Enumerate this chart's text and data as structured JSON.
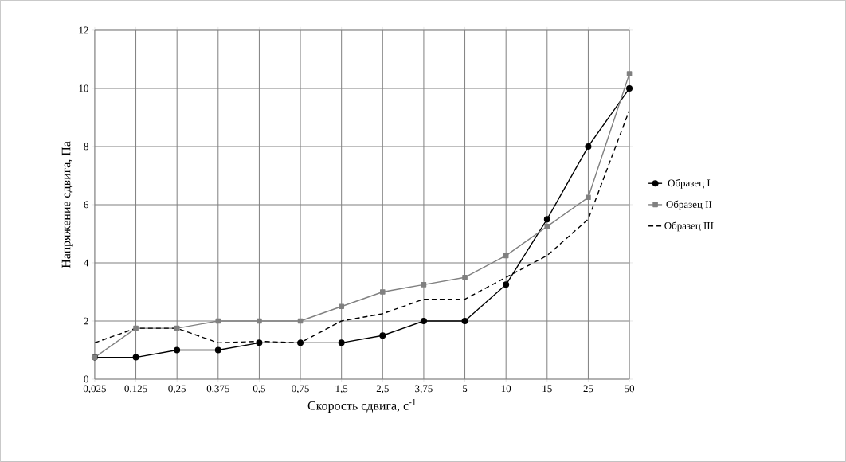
{
  "chart_data": {
    "type": "line",
    "xlabel": "Скорость сдвига, с$^{-1}$",
    "ylabel": "Напряжение сдвига, Па",
    "categories": [
      "0,025",
      "0,125",
      "0,25",
      "0,375",
      "0,5",
      "0,75",
      "1,5",
      "2,5",
      "3,75",
      "5",
      "10",
      "15",
      "25",
      "50"
    ],
    "ylim": [
      0,
      12
    ],
    "yticks": [
      0,
      2,
      4,
      6,
      8,
      10,
      12
    ],
    "grid": true,
    "legend": "right",
    "series": [
      {
        "name": "Образец I",
        "color": "#000000",
        "marker": "circle",
        "line_style": "solid",
        "values": [
          0.75,
          0.75,
          1,
          1,
          1.25,
          1.25,
          1.25,
          1.5,
          2,
          2,
          3.25,
          5.5,
          8,
          10
        ]
      },
      {
        "name": "Образец II",
        "color": "#808080",
        "marker": "square",
        "line_style": "solid",
        "values": [
          0.75,
          1.75,
          1.75,
          2,
          2,
          2,
          2.5,
          3,
          3.25,
          3.5,
          4.25,
          5.25,
          6.25,
          10.5
        ]
      },
      {
        "name": "Образец III",
        "color": "#000000",
        "marker": "none",
        "line_style": "dashed",
        "values": [
          1.25,
          1.75,
          1.75,
          1.25,
          1.3,
          1.25,
          2,
          2.25,
          2.75,
          2.75,
          3.5,
          4.25,
          5.5,
          9.25
        ]
      }
    ]
  }
}
